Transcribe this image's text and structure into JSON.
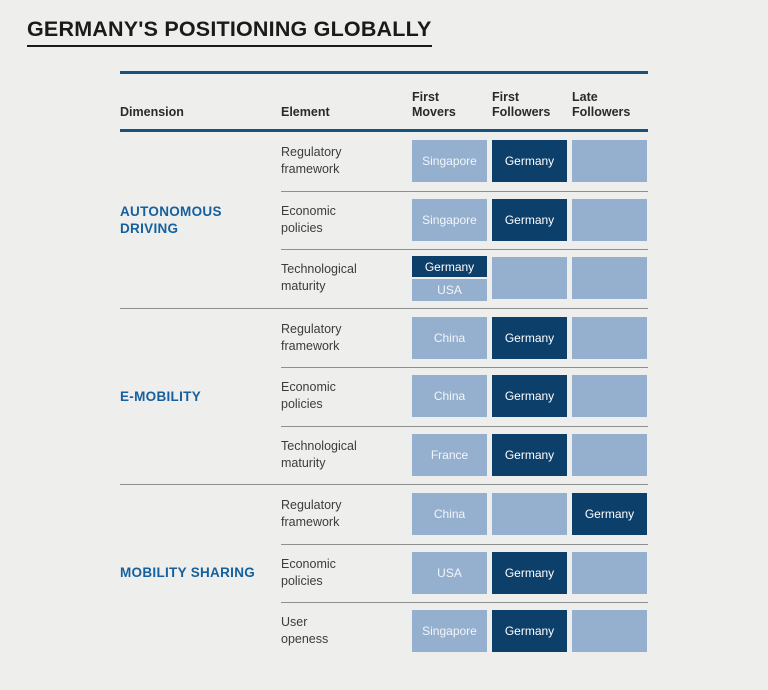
{
  "page": {
    "title": "GERMANY'S POSITIONING GLOBALLY"
  },
  "colors": {
    "background": "#EEEEEC",
    "rule_blue": "#18537C",
    "light_cell": "#95AFCE",
    "dark_cell": "#0D3F6B",
    "dimension_label": "#15609E",
    "separator_gray": "#8F8F8F",
    "title_text": "#1A1A1A",
    "cell_text": "#FFFFFF"
  },
  "table": {
    "header": {
      "dimension": "Dimension",
      "element": "Element",
      "first_movers": "First\nMovers",
      "first_followers": "First\nFollowers",
      "late_followers": "Late\nFollowers"
    },
    "sections": [
      {
        "dimension": "AUTONOMOUS\nDRIVING",
        "rows": [
          {
            "element": "Regulatory\nframework",
            "cells": [
              {
                "label": "Singapore",
                "tone": "light"
              },
              {
                "label": "Germany",
                "tone": "dark"
              },
              {
                "label": "",
                "tone": "light"
              }
            ]
          },
          {
            "element": "Economic\npolicies",
            "cells": [
              {
                "label": "Singapore",
                "tone": "light"
              },
              {
                "label": "Germany",
                "tone": "dark"
              },
              {
                "label": "",
                "tone": "light"
              }
            ]
          },
          {
            "element": "Technological\nmaturity",
            "cells": [
              {
                "split": [
                  {
                    "label": "Germany",
                    "tone": "dark"
                  },
                  {
                    "label": "USA",
                    "tone": "light"
                  }
                ]
              },
              {
                "label": "",
                "tone": "light"
              },
              {
                "label": "",
                "tone": "light"
              }
            ]
          }
        ]
      },
      {
        "dimension": "E-MOBILITY",
        "rows": [
          {
            "element": "Regulatory\nframework",
            "cells": [
              {
                "label": "China",
                "tone": "light"
              },
              {
                "label": "Germany",
                "tone": "dark"
              },
              {
                "label": "",
                "tone": "light"
              }
            ]
          },
          {
            "element": "Economic\npolicies",
            "cells": [
              {
                "label": "China",
                "tone": "light"
              },
              {
                "label": "Germany",
                "tone": "dark"
              },
              {
                "label": "",
                "tone": "light"
              }
            ]
          },
          {
            "element": "Technological\nmaturity",
            "cells": [
              {
                "label": "France",
                "tone": "light"
              },
              {
                "label": "Germany",
                "tone": "dark"
              },
              {
                "label": "",
                "tone": "light"
              }
            ]
          }
        ]
      },
      {
        "dimension": "MOBILITY SHARING",
        "rows": [
          {
            "element": "Regulatory\nframework",
            "cells": [
              {
                "label": "China",
                "tone": "light"
              },
              {
                "label": "",
                "tone": "light"
              },
              {
                "label": "Germany",
                "tone": "dark"
              }
            ]
          },
          {
            "element": "Economic\npolicies",
            "cells": [
              {
                "label": "USA",
                "tone": "light"
              },
              {
                "label": "Germany",
                "tone": "dark"
              },
              {
                "label": "",
                "tone": "light"
              }
            ]
          },
          {
            "element": "User\nopeness",
            "cells": [
              {
                "label": "Singapore",
                "tone": "light"
              },
              {
                "label": "Germany",
                "tone": "dark"
              },
              {
                "label": "",
                "tone": "light"
              }
            ]
          }
        ]
      }
    ]
  },
  "chart_data": {
    "type": "table",
    "title": "GERMANY'S POSITIONING GLOBALLY",
    "columns": [
      "Dimension",
      "Element",
      "First Movers",
      "First Followers",
      "Late Followers"
    ],
    "rows": [
      [
        "AUTONOMOUS DRIVING",
        "Regulatory framework",
        "Singapore",
        "Germany",
        ""
      ],
      [
        "AUTONOMOUS DRIVING",
        "Economic policies",
        "Singapore",
        "Germany",
        ""
      ],
      [
        "AUTONOMOUS DRIVING",
        "Technological maturity",
        "Germany / USA",
        "",
        ""
      ],
      [
        "E-MOBILITY",
        "Regulatory framework",
        "China",
        "Germany",
        ""
      ],
      [
        "E-MOBILITY",
        "Economic policies",
        "China",
        "Germany",
        ""
      ],
      [
        "E-MOBILITY",
        "Technological maturity",
        "France",
        "Germany",
        ""
      ],
      [
        "MOBILITY SHARING",
        "Regulatory framework",
        "China",
        "",
        "Germany"
      ],
      [
        "MOBILITY SHARING",
        "Economic policies",
        "USA",
        "Germany",
        ""
      ],
      [
        "MOBILITY SHARING",
        "User openess",
        "Singapore",
        "Germany",
        ""
      ]
    ],
    "legend_note": "Germany cells rendered dark navy (#0D3F6B); other countries and empty slots light steel blue (#95AFCE)"
  }
}
